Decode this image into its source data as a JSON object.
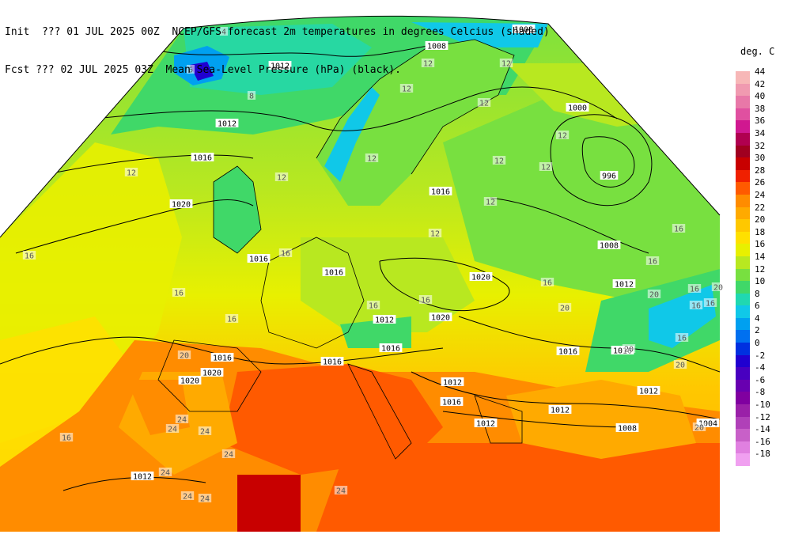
{
  "header": {
    "init_label": "Init",
    "init_value": "??? 01 JUL 2025 00Z",
    "fcst_label": "Fcst",
    "fcst_value": "??? 02 JUL 2025 03Z",
    "title_line1": "NCEP/GFS forecast 2m temperatures in degrees Celcius (shaded)",
    "title_line2": "Mean Sea-Level Pressure (hPa) (black)."
  },
  "legend": {
    "title": "deg. C",
    "entries": [
      {
        "value": "44",
        "color": "#f7b7b7"
      },
      {
        "value": "42",
        "color": "#f09ab0"
      },
      {
        "value": "40",
        "color": "#e878a8"
      },
      {
        "value": "38",
        "color": "#e050a0"
      },
      {
        "value": "36",
        "color": "#d01890"
      },
      {
        "value": "34",
        "color": "#b00050"
      },
      {
        "value": "32",
        "color": "#a00020"
      },
      {
        "value": "30",
        "color": "#c80000"
      },
      {
        "value": "28",
        "color": "#f02000"
      },
      {
        "value": "26",
        "color": "#ff5a00"
      },
      {
        "value": "24",
        "color": "#ff8c00"
      },
      {
        "value": "22",
        "color": "#ffaa00"
      },
      {
        "value": "20",
        "color": "#ffc800"
      },
      {
        "value": "18",
        "color": "#ffe000"
      },
      {
        "value": "16",
        "color": "#e8f000"
      },
      {
        "value": "14",
        "color": "#b8e820"
      },
      {
        "value": "12",
        "color": "#78e040"
      },
      {
        "value": "10",
        "color": "#40d868"
      },
      {
        "value": "8",
        "color": "#20d8b0"
      },
      {
        "value": "6",
        "color": "#10c8e8"
      },
      {
        "value": "4",
        "color": "#00a0f0"
      },
      {
        "value": "2",
        "color": "#0070f0"
      },
      {
        "value": "0",
        "color": "#0030e0"
      },
      {
        "value": "-2",
        "color": "#2000d0"
      },
      {
        "value": "-4",
        "color": "#4800c0"
      },
      {
        "value": "-6",
        "color": "#6800b0"
      },
      {
        "value": "-8",
        "color": "#8000a0"
      },
      {
        "value": "-10",
        "color": "#9a20a8"
      },
      {
        "value": "-12",
        "color": "#b040b8"
      },
      {
        "value": "-14",
        "color": "#c860c8"
      },
      {
        "value": "-16",
        "color": "#e080e0"
      },
      {
        "value": "-18",
        "color": "#f0a0f0"
      }
    ]
  },
  "isobar_labels": [
    "1008",
    "1008",
    "1012",
    "1008",
    "1012",
    "1016",
    "1020",
    "1016",
    "1000",
    "996",
    "1016",
    "1016",
    "1020",
    "1008",
    "1012",
    "1016",
    "1020",
    "1020",
    "1016",
    "1016",
    "1016",
    "1016",
    "1016",
    "1012",
    "1012",
    "1012",
    "1012",
    "1020",
    "1012",
    "1012",
    "1008",
    "1004"
  ],
  "temp_labels": [
    "4",
    "6",
    "8",
    "12",
    "12",
    "12",
    "12",
    "12",
    "12",
    "12",
    "12",
    "12",
    "12",
    "12",
    "12",
    "16",
    "16",
    "16",
    "16",
    "16",
    "16",
    "16",
    "16",
    "16",
    "16",
    "16",
    "16",
    "16",
    "20",
    "20",
    "20",
    "20",
    "20",
    "20",
    "20",
    "24",
    "24",
    "24",
    "24",
    "24",
    "24",
    "24",
    "24",
    "16"
  ]
}
